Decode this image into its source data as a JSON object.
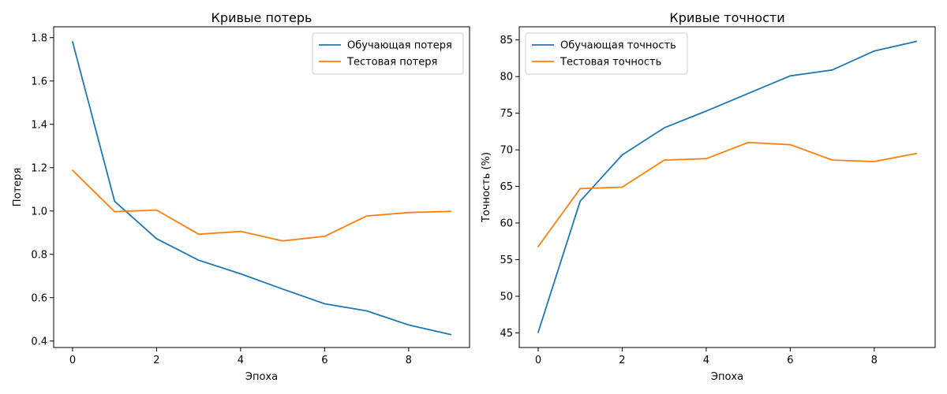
{
  "chart_data": [
    {
      "type": "line",
      "title": "Кривые потерь",
      "xlabel": "Эпоха",
      "ylabel": "Потеря",
      "x": [
        0,
        1,
        2,
        3,
        4,
        5,
        6,
        7,
        8,
        9
      ],
      "xlim": [
        -0.45,
        9.45
      ],
      "ylim": [
        0.37,
        1.85
      ],
      "xticks": [
        0,
        2,
        4,
        6,
        8
      ],
      "xtick_labels": [
        "0",
        "2",
        "4",
        "6",
        "8"
      ],
      "yticks": [
        0.4,
        0.6,
        0.8,
        1.0,
        1.2,
        1.4,
        1.6,
        1.8
      ],
      "ytick_labels": [
        "0.4",
        "0.6",
        "0.8",
        "1.0",
        "1.2",
        "1.4",
        "1.6",
        "1.8"
      ],
      "grid": false,
      "legend_position": "top-right",
      "series": [
        {
          "name": "Обучающая потеря",
          "color": "#1f77b4",
          "values": [
            1.78,
            1.045,
            0.872,
            0.773,
            0.71,
            0.64,
            0.572,
            0.539,
            0.474,
            0.43
          ]
        },
        {
          "name": "Тестовая потеря",
          "color": "#ff7f0e",
          "values": [
            1.187,
            0.997,
            1.004,
            0.893,
            0.906,
            0.862,
            0.883,
            0.977,
            0.993,
            0.998
          ]
        }
      ]
    },
    {
      "type": "line",
      "title": "Кривые точности",
      "xlabel": "Эпоха",
      "ylabel": "Точность (%)",
      "x": [
        0,
        1,
        2,
        3,
        4,
        5,
        6,
        7,
        8,
        9
      ],
      "xlim": [
        -0.45,
        9.45
      ],
      "ylim": [
        43.0,
        86.8
      ],
      "xticks": [
        0,
        2,
        4,
        6,
        8
      ],
      "xtick_labels": [
        "0",
        "2",
        "4",
        "6",
        "8"
      ],
      "yticks": [
        45,
        50,
        55,
        60,
        65,
        70,
        75,
        80,
        85
      ],
      "ytick_labels": [
        "45",
        "50",
        "55",
        "60",
        "65",
        "70",
        "75",
        "80",
        "85"
      ],
      "grid": false,
      "legend_position": "top-left",
      "series": [
        {
          "name": "Обучающая точность",
          "color": "#1f77b4",
          "values": [
            45.1,
            63.0,
            69.3,
            73.0,
            75.3,
            77.7,
            80.1,
            80.9,
            83.5,
            84.8
          ]
        },
        {
          "name": "Тестовая точность",
          "color": "#ff7f0e",
          "values": [
            56.8,
            64.7,
            64.9,
            68.6,
            68.8,
            71.0,
            70.7,
            68.6,
            68.4,
            69.5
          ]
        }
      ]
    }
  ]
}
